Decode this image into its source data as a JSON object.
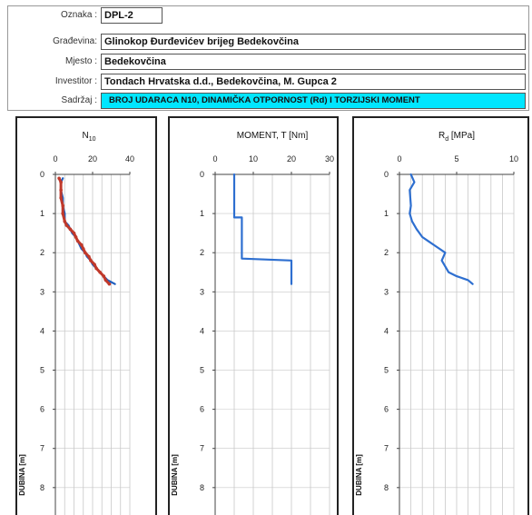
{
  "header": {
    "oznaka_label": "Oznaka :",
    "oznaka_value": "DPL-2",
    "gradevina_label": "Građevina:",
    "gradevina_value": "Glinokop Đurđevićev brijeg Bedekovčina",
    "mjesto_label": "Mjesto :",
    "mjesto_value": "Bedekovčina",
    "investitor_label": "Investitor :",
    "investitor_value": "Tondach Hrvatska d.d., Bedekovčina, M. Gupca 2",
    "sadrzaj_label": "Sadržaj :",
    "sadrzaj_value": "BROJ UDARACA N10, DINAMIČKA OTPORNOST (Rd) I TORZIJSKI MOMENT",
    "sadrzaj_color": "#00e6ff"
  },
  "chart_data": [
    {
      "type": "line",
      "title": "N10",
      "ylabel": "DUBINA [m]",
      "xlim": [
        0,
        40
      ],
      "xticks": [
        0,
        20,
        40
      ],
      "yticks": [
        0,
        1,
        2,
        3,
        4,
        5,
        6,
        7,
        8
      ],
      "ylim": [
        0,
        8.7
      ],
      "y_inverted": true,
      "grid": true,
      "series": [
        {
          "color": "#1f5fbf",
          "points": [
            [
              4,
              0.1
            ],
            [
              3,
              0.2
            ],
            [
              3,
              0.4
            ],
            [
              4,
              0.6
            ],
            [
              4,
              0.8
            ],
            [
              5,
              1.0
            ],
            [
              5,
              1.2
            ],
            [
              7,
              1.3
            ],
            [
              8,
              1.4
            ],
            [
              9,
              1.5
            ],
            [
              11,
              1.6
            ],
            [
              12,
              1.7
            ],
            [
              13,
              1.8
            ],
            [
              14,
              1.9
            ],
            [
              16,
              2.0
            ],
            [
              17,
              2.1
            ],
            [
              19,
              2.2
            ],
            [
              20,
              2.3
            ],
            [
              22,
              2.4
            ],
            [
              24,
              2.5
            ],
            [
              26,
              2.6
            ],
            [
              28,
              2.7
            ],
            [
              32,
              2.8
            ]
          ]
        },
        {
          "color": "#c0392b",
          "points": [
            [
              2,
              0.1
            ],
            [
              3,
              0.2
            ],
            [
              3,
              0.4
            ],
            [
              3,
              0.6
            ],
            [
              4,
              0.8
            ],
            [
              4,
              1.0
            ],
            [
              5,
              1.2
            ],
            [
              6,
              1.3
            ],
            [
              8,
              1.4
            ],
            [
              10,
              1.5
            ],
            [
              11,
              1.6
            ],
            [
              12,
              1.7
            ],
            [
              14,
              1.8
            ],
            [
              15,
              1.9
            ],
            [
              16,
              2.0
            ],
            [
              18,
              2.1
            ],
            [
              19,
              2.2
            ],
            [
              21,
              2.3
            ],
            [
              22,
              2.4
            ],
            [
              24,
              2.5
            ],
            [
              26,
              2.6
            ],
            [
              27,
              2.7
            ],
            [
              29,
              2.8
            ]
          ]
        }
      ]
    },
    {
      "type": "line",
      "title": "MOMENT, T [Nm]",
      "ylabel": "DUBINA [m]",
      "xlim": [
        0,
        30
      ],
      "xticks": [
        0,
        10,
        20,
        30
      ],
      "yticks": [
        0,
        1,
        2,
        3,
        4,
        5,
        6,
        7,
        8
      ],
      "ylim": [
        0,
        8.7
      ],
      "y_inverted": true,
      "grid": true,
      "series": [
        {
          "color": "#2e6fd0",
          "points": [
            [
              5,
              0.0
            ],
            [
              5,
              1.1
            ],
            [
              7,
              1.1
            ],
            [
              7,
              2.1
            ],
            [
              7,
              2.15
            ],
            [
              20,
              2.2
            ],
            [
              20,
              2.8
            ]
          ]
        }
      ]
    },
    {
      "type": "line",
      "title": "Rd [MPa]",
      "ylabel": "DUBINA [m]",
      "xlim": [
        0,
        10
      ],
      "xticks": [
        0,
        5,
        10
      ],
      "yticks": [
        0,
        1,
        2,
        3,
        4,
        5,
        6,
        7,
        8
      ],
      "ylim": [
        0,
        8.7
      ],
      "y_inverted": true,
      "grid": true,
      "series": [
        {
          "color": "#2e6fd0",
          "points": [
            [
              1.0,
              0.0
            ],
            [
              1.3,
              0.2
            ],
            [
              0.9,
              0.4
            ],
            [
              1.0,
              0.8
            ],
            [
              0.9,
              1.0
            ],
            [
              1.1,
              1.2
            ],
            [
              1.5,
              1.4
            ],
            [
              2.0,
              1.6
            ],
            [
              2.5,
              1.7
            ],
            [
              3.0,
              1.8
            ],
            [
              3.5,
              1.9
            ],
            [
              4.0,
              2.0
            ],
            [
              3.7,
              2.2
            ],
            [
              3.9,
              2.3
            ],
            [
              4.3,
              2.5
            ],
            [
              5.0,
              2.6
            ],
            [
              6.0,
              2.7
            ],
            [
              6.4,
              2.8
            ]
          ]
        }
      ]
    }
  ]
}
